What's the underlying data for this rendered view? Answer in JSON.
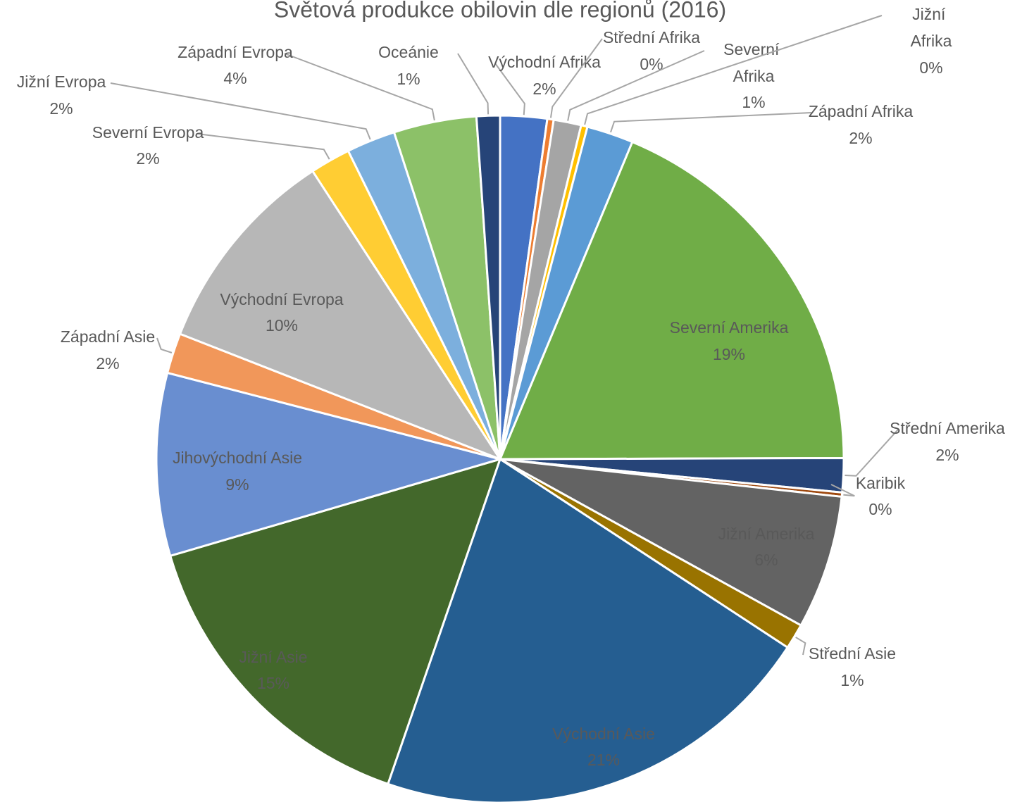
{
  "chart_data": {
    "type": "pie",
    "title": "Světová produkce obilovin dle regionů (2016)",
    "categories": [
      "Východní Afrika",
      "Střední Afrika",
      "Severní Afrika",
      "Jižní Afrika",
      "Západní Afrika",
      "Severní Amerika",
      "Střední Amerika",
      "Karibik",
      "Jižní Amerika",
      "Střední Asie",
      "Východní Asie",
      "Jižní Asie",
      "Jihovýchodní Asie",
      "Západní Asie",
      "Východní Evropa",
      "Severní Evropa",
      "Jižní Evropa",
      "Západní Evropa",
      "Oceánie"
    ],
    "values": [
      2.2,
      0.3,
      1.3,
      0.3,
      2.2,
      18.7,
      1.6,
      0.2,
      6.3,
      1.2,
      21.1,
      15.2,
      8.6,
      1.9,
      9.9,
      1.9,
      2.3,
      3.9,
      1.1
    ],
    "value_labels": [
      "2%",
      "0%",
      "1%",
      "0%",
      "2%",
      "19%",
      "2%",
      "0%",
      "6%",
      "1%",
      "21%",
      "15%",
      "9%",
      "2%",
      "10%",
      "2%",
      "2%",
      "4%",
      "1%"
    ],
    "colors": [
      "#4472c4",
      "#ed7d31",
      "#a5a5a5",
      "#ffc000",
      "#5b9bd5",
      "#70ad47",
      "#264478",
      "#9e480e",
      "#636363",
      "#997300",
      "#255e91",
      "#43682b",
      "#698ed0",
      "#f1975a",
      "#b7b7b7",
      "#ffcd33",
      "#7cafdd",
      "#8cc168",
      "#264478"
    ]
  }
}
